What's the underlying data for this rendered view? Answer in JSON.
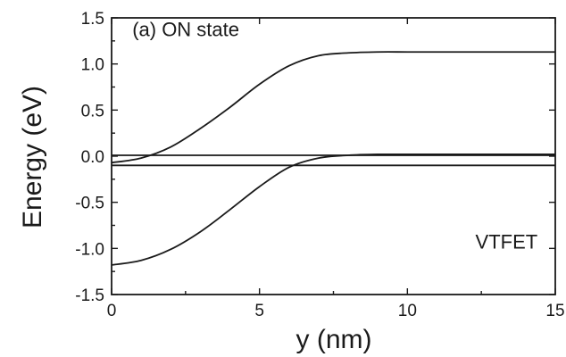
{
  "chart_data": {
    "type": "line",
    "title": "",
    "xlabel": "y (nm)",
    "ylabel": "Energy (eV)",
    "xlim": [
      0,
      15
    ],
    "ylim": [
      -1.5,
      1.5
    ],
    "xticks": [
      0,
      5,
      10,
      15
    ],
    "xtick_labels": [
      "0",
      "5",
      "10",
      "15"
    ],
    "yticks": [
      -1.5,
      -1.0,
      -0.5,
      0.0,
      0.5,
      1.0,
      1.5
    ],
    "ytick_labels": [
      "-1.5",
      "-1.0",
      "-0.5",
      "0.0",
      "0.5",
      "1.0",
      "1.5"
    ],
    "grid": false,
    "legend": "none",
    "annotations": [
      {
        "text": "(a) ON state",
        "x": 0.7,
        "y": 1.3
      },
      {
        "text": "VTFET",
        "x": 12.3,
        "y": -1.0
      }
    ],
    "series": [
      {
        "x": [
          0,
          1,
          2,
          3,
          4,
          5,
          6,
          7,
          8,
          9,
          10,
          11,
          12,
          13,
          14,
          15
        ],
        "y": [
          -0.07,
          -0.02,
          0.1,
          0.3,
          0.53,
          0.78,
          0.98,
          1.09,
          1.12,
          1.13,
          1.13,
          1.13,
          1.13,
          1.13,
          1.13,
          1.13
        ]
      },
      {
        "x": [
          0,
          1,
          2,
          3,
          4,
          5,
          6,
          7,
          8,
          9,
          10,
          11,
          12,
          13,
          14,
          15
        ],
        "y": [
          -1.18,
          -1.13,
          -1.01,
          -0.82,
          -0.58,
          -0.33,
          -0.12,
          -0.02,
          0.01,
          0.02,
          0.02,
          0.02,
          0.02,
          0.02,
          0.02,
          0.02
        ]
      },
      {
        "x": [
          0,
          15
        ],
        "y": [
          0.01,
          0.01
        ]
      },
      {
        "x": [
          0,
          15
        ],
        "y": [
          -0.1,
          -0.1
        ]
      }
    ]
  }
}
